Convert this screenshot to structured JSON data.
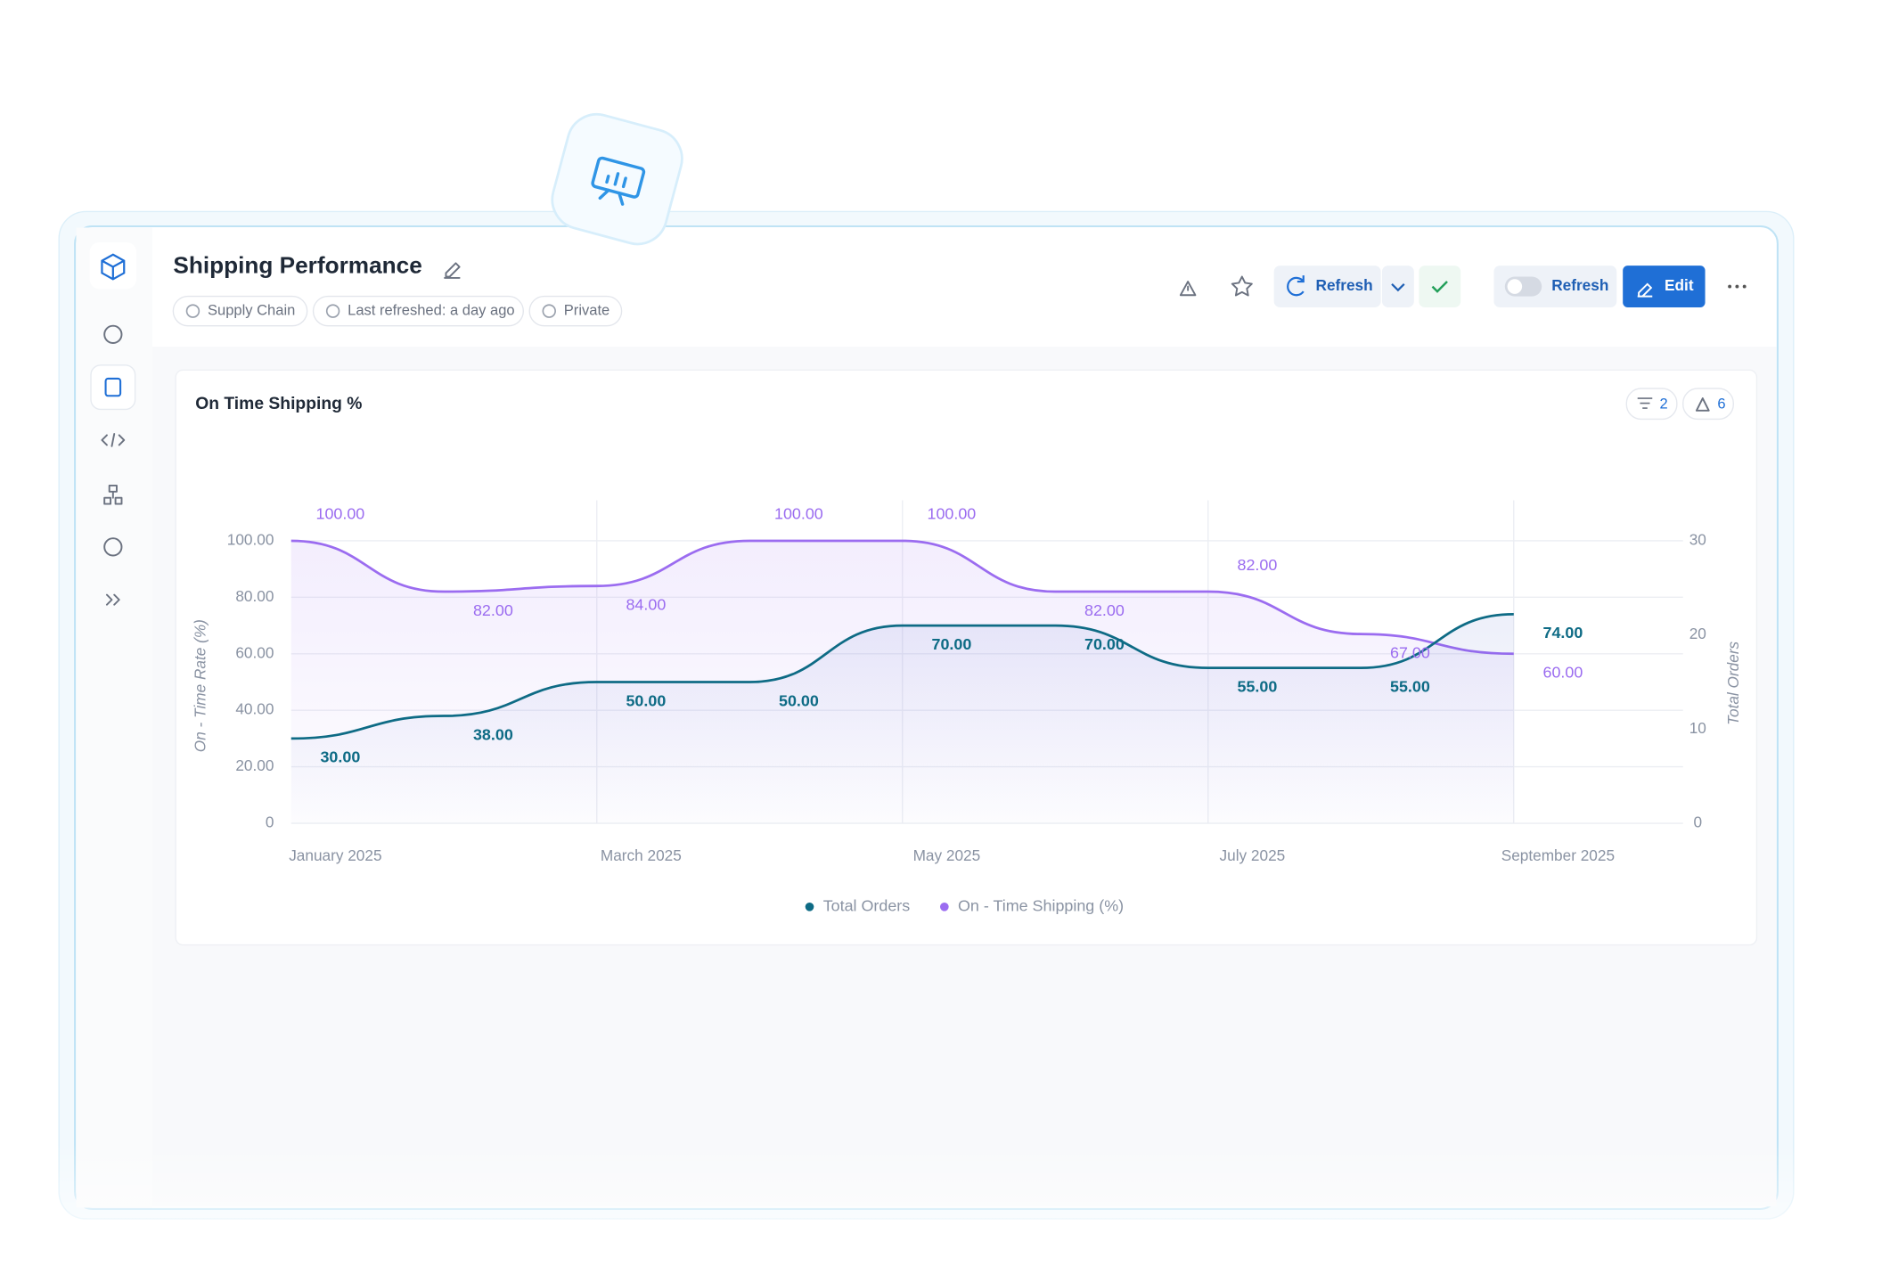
{
  "header": {
    "title": "Shipping Performance",
    "tags": [
      "Supply Chain",
      "Last refreshed: a day ago",
      "Private"
    ],
    "buttons": {
      "refresh": "Refresh",
      "auto_refresh": "Refresh",
      "edit": "Edit"
    }
  },
  "card": {
    "filter_count": "2",
    "alert_count": "6"
  },
  "chart_data": {
    "type": "line",
    "title": "On Time Shipping %",
    "categories": [
      "January 2025",
      null,
      "March 2025",
      null,
      "May 2025",
      null,
      "July 2025",
      null,
      "September 2025"
    ],
    "series": [
      {
        "name": "Total Orders",
        "color": "#0e6b85",
        "values": [
          30,
          38,
          50,
          50,
          70,
          70,
          55,
          55,
          74
        ],
        "value_labels": [
          "30.00",
          "38.00",
          "50.00",
          "50.00",
          "70.00",
          "70.00",
          "55.00",
          "55.00",
          "74.00"
        ]
      },
      {
        "name": "On - Time Shipping (%)",
        "color": "#9b6cf0",
        "values": [
          100,
          82,
          84,
          100,
          100,
          82,
          82,
          67,
          60
        ],
        "value_labels": [
          "100.00",
          "82.00",
          "84.00",
          "100.00",
          "100.00",
          "82.00",
          "82.00",
          "67.00",
          "60.00"
        ]
      }
    ],
    "y_label": "On - Time Rate (%)",
    "y2_label": "Total Orders",
    "ylim": [
      0,
      100
    ],
    "yticks": [
      0,
      {
        "value": 20,
        "label": "20.00"
      },
      {
        "value": 40,
        "label": "40.00"
      },
      {
        "value": 60,
        "label": "60.00"
      },
      {
        "value": 80,
        "label": "80.00"
      },
      {
        "value": 100,
        "label": "100.00"
      }
    ],
    "y2lim": [
      0,
      30
    ],
    "y2ticks": [
      0,
      10,
      20,
      30
    ],
    "grid": true,
    "legend": "bottom"
  }
}
